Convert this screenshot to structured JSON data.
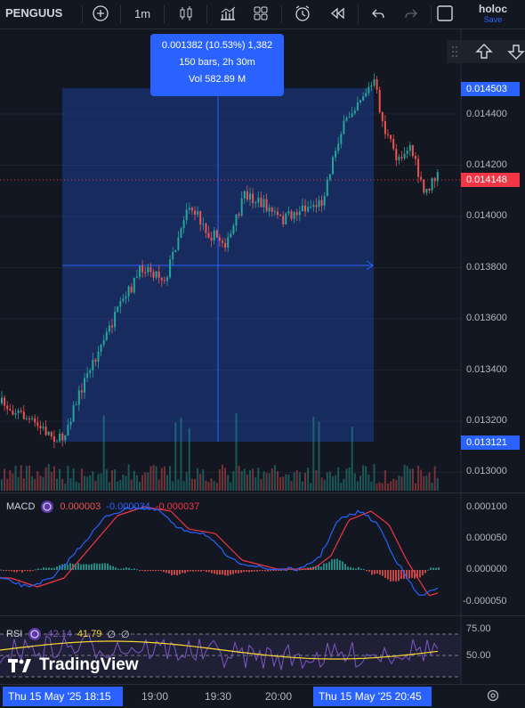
{
  "toolbar": {
    "symbol": "PENGUUS",
    "interval": "1m",
    "user_name": "holoc",
    "save_label": "Save",
    "icons": [
      "plus-icon",
      "candles-icon",
      "bar-chart-icon",
      "grid-icon",
      "alert-icon",
      "replay-icon",
      "undo-icon",
      "redo-icon",
      "square-icon"
    ]
  },
  "tooltip": {
    "line1": "0.001382 (10.53%) 1,382",
    "line2": "150 bars, 2h 30m",
    "line3": "Vol 582.89 M"
  },
  "main_price_scale": [
    "0.014400",
    "0.014200",
    "0.014000",
    "0.013800",
    "0.013600",
    "0.013400",
    "0.013200",
    "0.013000"
  ],
  "price_tags": {
    "top": "0.014503",
    "current": "0.014148",
    "bottom": "0.013121"
  },
  "macd": {
    "label": "MACD",
    "v1": "0.000003",
    "v2": "-0.000034",
    "v3": "-0.000037",
    "scale": [
      "0.000100",
      "0.000050",
      "0.000000",
      "-0.000050"
    ]
  },
  "rsi": {
    "label": "RSI",
    "v1": "42.14",
    "v2": "41.79",
    "v3": "∅",
    "v4": "∅",
    "scale": [
      "75.00",
      "50.00"
    ]
  },
  "time_axis": {
    "box_left": "Thu 15 May '25   18:15",
    "t1": "19:00",
    "t2": "19:30",
    "t3": "20:00",
    "box_right": "Thu 15 May '25   20:45"
  },
  "logo_text": "TradingView",
  "colors": {
    "up": "#26a69a",
    "down": "#ef5350",
    "accent": "#2962ff",
    "macd": "#2962ff",
    "signal": "#f23645",
    "rsi": "#7e57c2",
    "rsi_ma": "#fdd835"
  }
}
